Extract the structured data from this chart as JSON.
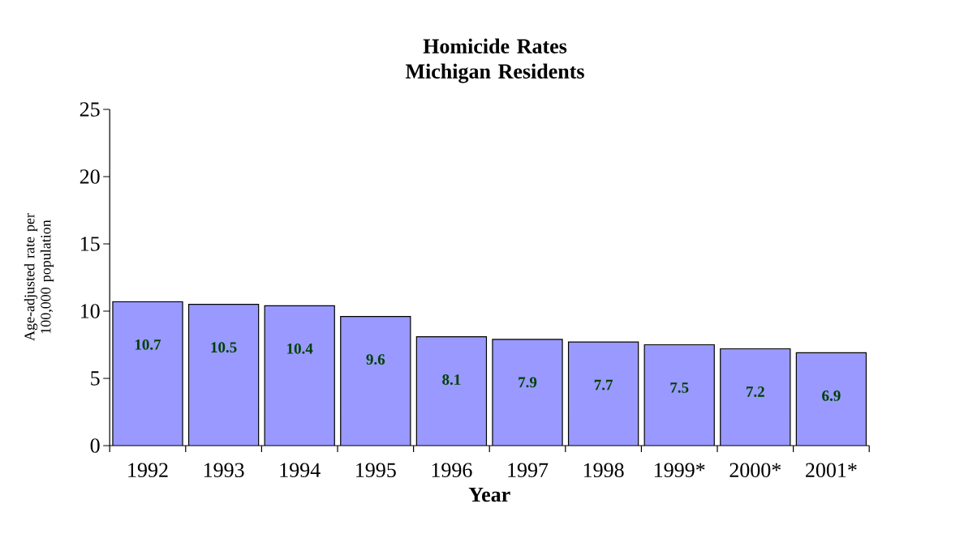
{
  "chart_data": {
    "type": "bar",
    "title": "Homicide Rates\nMichigan Residents",
    "xlabel": "Year",
    "ylabel": "Age-adjusted rate per\n100,000 population",
    "categories": [
      "1992",
      "1993",
      "1994",
      "1995",
      "1996",
      "1997",
      "1998",
      "1999*",
      "2000*",
      "2001*"
    ],
    "values": [
      10.7,
      10.5,
      10.4,
      9.6,
      8.1,
      7.9,
      7.7,
      7.5,
      7.2,
      6.9
    ],
    "color": "#9999ff",
    "ylim": [
      0,
      25
    ],
    "yticks": [
      0,
      5,
      10,
      15,
      20,
      25
    ],
    "data_labels": true,
    "grid": false
  }
}
